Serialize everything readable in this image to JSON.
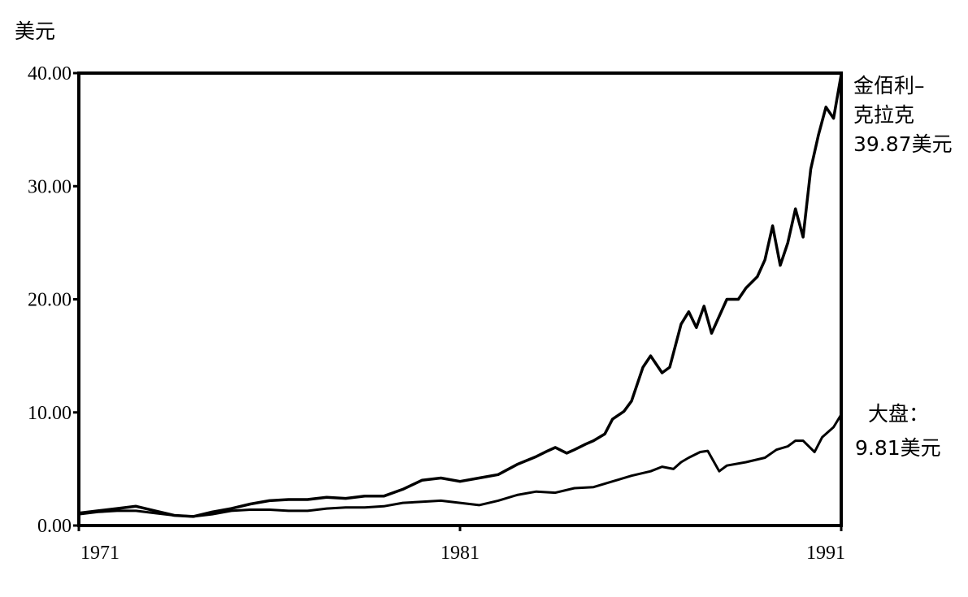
{
  "chart_data": {
    "type": "line",
    "title": "",
    "y_unit": "美元",
    "xlabel": "",
    "ylabel": "",
    "xlim": [
      1971,
      1991
    ],
    "ylim": [
      0,
      40
    ],
    "grid": false,
    "x_ticks": [
      {
        "value": 1971,
        "label": "1971"
      },
      {
        "value": 1981,
        "label": "1981"
      },
      {
        "value": 1991,
        "label": "1991"
      }
    ],
    "y_ticks": [
      {
        "value": 0,
        "label": "0.00"
      },
      {
        "value": 10,
        "label": "10.00"
      },
      {
        "value": 20,
        "label": "20.00"
      },
      {
        "value": 30,
        "label": "30.00"
      },
      {
        "value": 40,
        "label": "40.00"
      }
    ],
    "series": [
      {
        "name": "金佰利-克拉克",
        "label_lines": [
          "金佰利–",
          "克拉克",
          "39.87美元"
        ],
        "end_value": 39.87,
        "x": [
          1971,
          1971.5,
          1972,
          1972.5,
          1973,
          1973.5,
          1974,
          1974.5,
          1975,
          1975.5,
          1976,
          1976.5,
          1977,
          1977.5,
          1978,
          1978.5,
          1979,
          1979.5,
          1980,
          1980.5,
          1981,
          1981.5,
          1982,
          1982.5,
          1983,
          1983.3,
          1983.5,
          1983.8,
          1984,
          1984.3,
          1984.5,
          1984.8,
          1985,
          1985.3,
          1985.5,
          1985.8,
          1986,
          1986.3,
          1986.5,
          1986.8,
          1987,
          1987.2,
          1987.4,
          1987.6,
          1987.8,
          1988,
          1988.3,
          1988.5,
          1988.8,
          1989,
          1989.2,
          1989.4,
          1989.6,
          1989.8,
          1990,
          1990.2,
          1990.4,
          1990.6,
          1990.8,
          1991
        ],
        "y": [
          1.1,
          1.3,
          1.5,
          1.7,
          1.3,
          0.9,
          0.8,
          1.2,
          1.5,
          1.9,
          2.2,
          2.3,
          2.3,
          2.5,
          2.4,
          2.6,
          2.6,
          3.2,
          4.0,
          4.2,
          3.9,
          4.2,
          4.5,
          5.4,
          6.1,
          6.6,
          6.9,
          6.4,
          6.7,
          7.2,
          7.5,
          8.1,
          9.4,
          10.1,
          11.0,
          14.0,
          15.0,
          13.5,
          14.0,
          17.8,
          18.9,
          17.5,
          19.4,
          17.0,
          18.5,
          20.0,
          20.0,
          21.0,
          22.0,
          23.5,
          26.5,
          23.0,
          25.0,
          28.0,
          25.5,
          31.5,
          34.5,
          37.0,
          36.0,
          39.87
        ]
      },
      {
        "name": "大盘",
        "label_lines": [
          "大盘：",
          "9.81美元"
        ],
        "end_value": 9.81,
        "x": [
          1971,
          1971.5,
          1972,
          1972.5,
          1973,
          1973.5,
          1974,
          1974.5,
          1975,
          1975.5,
          1976,
          1976.5,
          1977,
          1977.5,
          1978,
          1978.5,
          1979,
          1979.5,
          1980,
          1980.5,
          1981,
          1981.5,
          1982,
          1982.5,
          1983,
          1983.5,
          1984,
          1984.5,
          1985,
          1985.5,
          1986,
          1986.3,
          1986.6,
          1986.8,
          1987,
          1987.3,
          1987.5,
          1987.8,
          1988,
          1988.5,
          1989,
          1989.3,
          1989.6,
          1989.8,
          1990,
          1990.3,
          1990.5,
          1990.8,
          1991
        ],
        "y": [
          1.0,
          1.2,
          1.3,
          1.3,
          1.1,
          0.9,
          0.8,
          1.0,
          1.3,
          1.4,
          1.4,
          1.3,
          1.3,
          1.5,
          1.6,
          1.6,
          1.7,
          2.0,
          2.1,
          2.2,
          2.0,
          1.8,
          2.2,
          2.7,
          3.0,
          2.9,
          3.3,
          3.4,
          3.9,
          4.4,
          4.8,
          5.2,
          5.0,
          5.6,
          6.0,
          6.5,
          6.6,
          4.8,
          5.3,
          5.6,
          6.0,
          6.7,
          7.0,
          7.5,
          7.5,
          6.5,
          7.8,
          8.7,
          9.81
        ]
      }
    ]
  }
}
